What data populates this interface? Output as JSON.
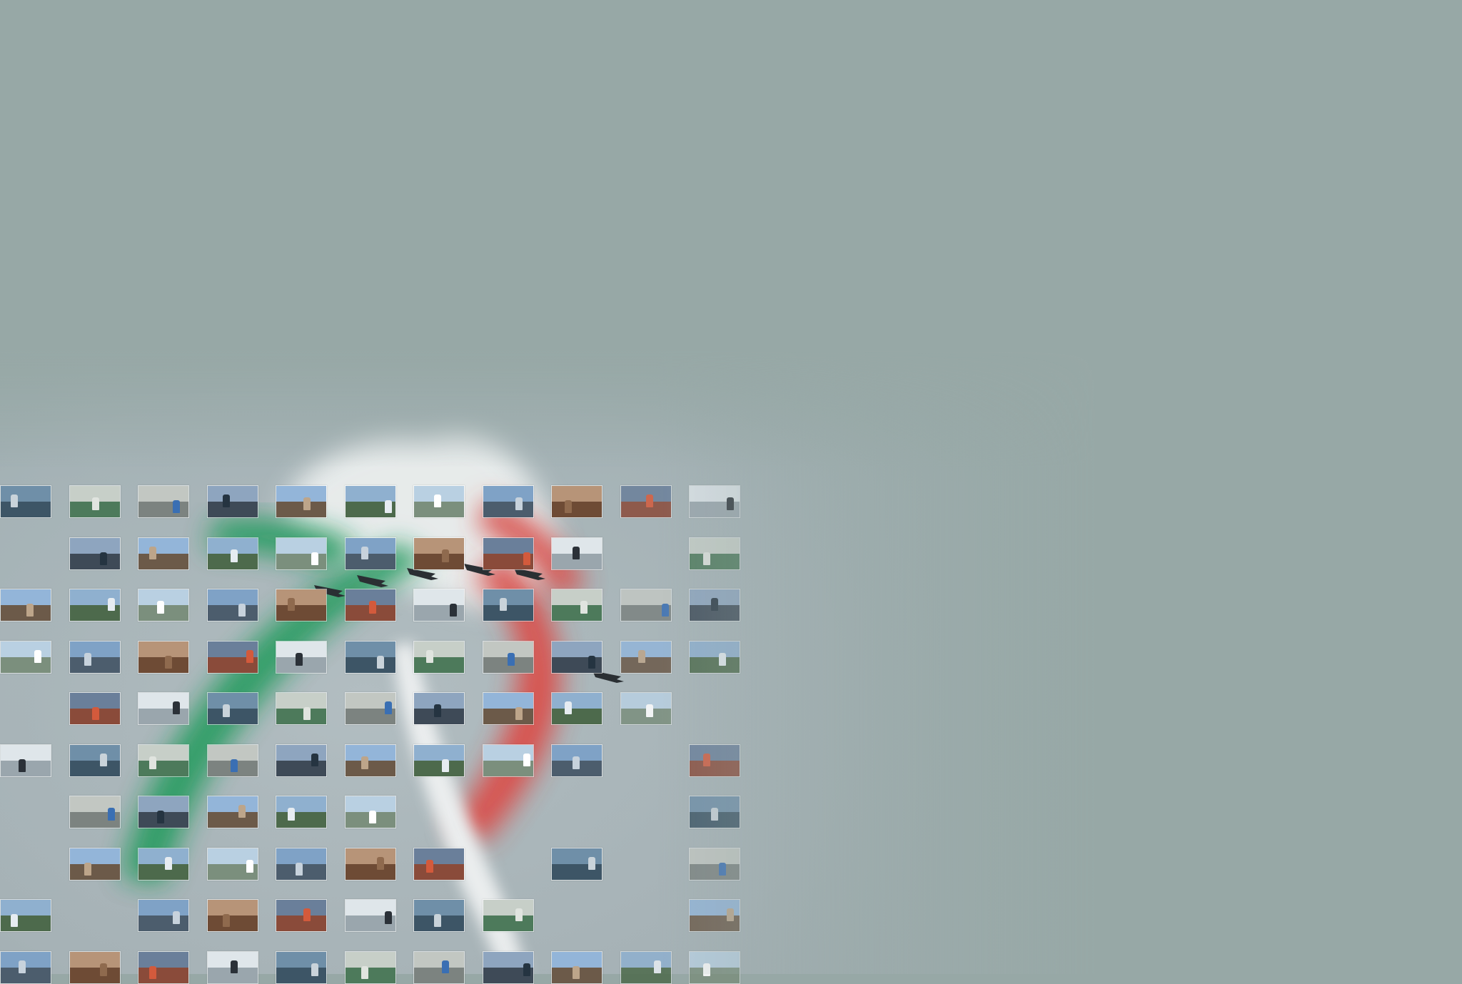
{
  "scene": {
    "background_color": "#97a8a6",
    "flag_colors": {
      "green": "#1f9a5a",
      "white": "#f4f6f5",
      "red": "#e0403a"
    },
    "grid": {
      "columns": 11,
      "rows": 10
    },
    "missing_cells": [
      [
        1,
        0
      ],
      [
        4,
        0
      ],
      [
        6,
        0
      ],
      [
        7,
        0
      ],
      [
        1,
        9
      ],
      [
        5,
        9
      ],
      [
        6,
        9
      ],
      [
        8,
        9
      ],
      [
        4,
        10
      ],
      [
        6,
        6
      ],
      [
        6,
        7
      ],
      [
        6,
        8
      ],
      [
        7,
        0
      ],
      [
        7,
        7
      ],
      [
        7,
        9
      ],
      [
        8,
        1
      ],
      [
        8,
        8
      ]
    ],
    "thumbnails": [
      {
        "palette": [
          "#6f8fa8",
          "#3d5566"
        ],
        "accent": "#c9d3da"
      },
      {
        "palette": [
          "#b79478",
          "#6e4b35"
        ],
        "accent": "#8f6a4e"
      },
      {
        "palette": [
          "#8fb0cf",
          "#4d6a4c"
        ],
        "accent": "#e6ecf1"
      },
      {
        "palette": [
          "#c2c7c2",
          "#7c8380"
        ],
        "accent": "#3a6fb3"
      },
      {
        "palette": [
          "#dfe6ea",
          "#9aa6ad"
        ],
        "accent": "#2b3138"
      },
      {
        "palette": [
          "#7fa2c6",
          "#4c5d6d"
        ],
        "accent": "#c7d2dc"
      },
      {
        "palette": [
          "#93b5d9",
          "#6c5a49"
        ],
        "accent": "#bda58a"
      },
      {
        "palette": [
          "#c7cfc8",
          "#4d7a5b"
        ],
        "accent": "#e0e4df"
      },
      {
        "palette": [
          "#6a7f9a",
          "#8a4b3a"
        ],
        "accent": "#d35a3c"
      },
      {
        "palette": [
          "#b9d0e2",
          "#7b8f7d"
        ],
        "accent": "#ffffff"
      },
      {
        "palette": [
          "#8ea5bf",
          "#3e4a57"
        ],
        "accent": "#253441"
      }
    ]
  }
}
